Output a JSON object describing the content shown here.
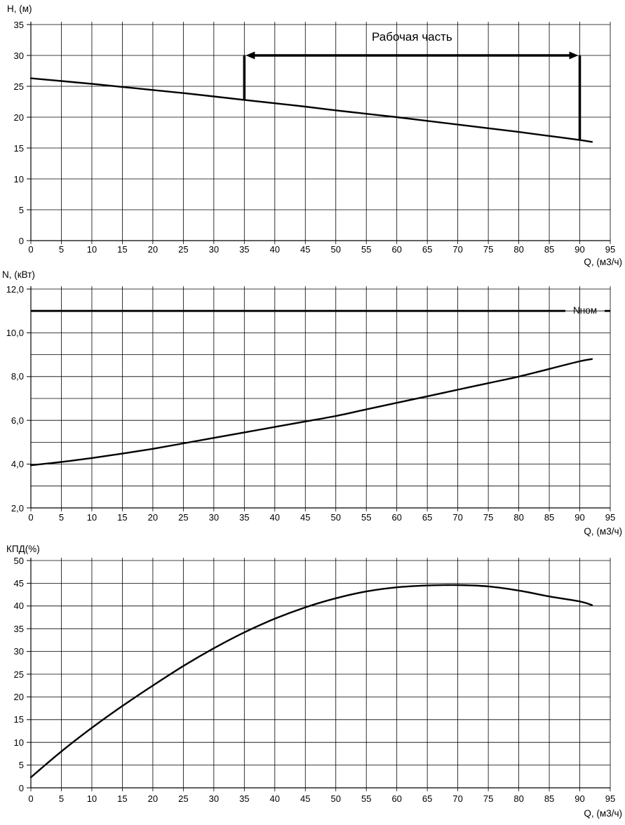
{
  "page": {
    "background": "#ffffff",
    "ink_color": "#000000"
  },
  "chart_data": [
    {
      "type": "line",
      "id": "head-chart",
      "ylabel": "H, (м)",
      "xlabel": "Q, (м3/ч)",
      "xlim": [
        0,
        95
      ],
      "ylim": [
        0,
        35
      ],
      "grid": true,
      "grid_y_step": 5,
      "x_ticks": [
        0,
        5,
        10,
        15,
        20,
        25,
        30,
        35,
        40,
        45,
        50,
        55,
        60,
        65,
        70,
        75,
        80,
        85,
        90,
        95
      ],
      "y_ticks": [
        35,
        30,
        25,
        20,
        15,
        10,
        5,
        0
      ],
      "y_tick_labels": [
        "35",
        "30",
        "25",
        "20",
        "15",
        "10",
        "5",
        "0"
      ],
      "series": [
        {
          "id": "head-curve",
          "x": [
            0,
            5,
            10,
            15,
            20,
            25,
            30,
            35,
            40,
            45,
            50,
            55,
            60,
            65,
            70,
            75,
            80,
            85,
            90,
            92
          ],
          "y": [
            26.3,
            25.85,
            25.4,
            24.9,
            24.4,
            23.9,
            23.35,
            22.8,
            22.25,
            21.7,
            21.1,
            20.55,
            20.0,
            19.4,
            18.8,
            18.2,
            17.6,
            16.95,
            16.3,
            16.0
          ]
        }
      ],
      "annotation": {
        "label": "Рабочая часть",
        "from_q": 35,
        "to_q": 90,
        "level": 30
      }
    },
    {
      "type": "line",
      "id": "power-chart",
      "ylabel": "N, (кВт)",
      "xlabel": "Q, (м3/ч)",
      "xlim": [
        0,
        95
      ],
      "ylim": [
        2,
        12
      ],
      "grid": true,
      "grid_y_step": 1,
      "x_ticks": [
        0,
        5,
        10,
        15,
        20,
        25,
        30,
        35,
        40,
        45,
        50,
        55,
        60,
        65,
        70,
        75,
        80,
        85,
        90,
        95
      ],
      "y_ticks": [
        12,
        10,
        8,
        6,
        4,
        2
      ],
      "y_tick_labels": [
        "12,0",
        "10,0",
        "8,0",
        "6,0",
        "4,0",
        "2,0"
      ],
      "series": [
        {
          "id": "power-curve",
          "x": [
            0,
            5,
            10,
            15,
            20,
            25,
            30,
            35,
            40,
            45,
            50,
            55,
            60,
            65,
            70,
            75,
            80,
            85,
            90,
            92
          ],
          "y": [
            3.95,
            4.1,
            4.28,
            4.48,
            4.7,
            4.95,
            5.2,
            5.45,
            5.7,
            5.95,
            6.2,
            6.5,
            6.8,
            7.1,
            7.4,
            7.7,
            8.0,
            8.35,
            8.7,
            8.8
          ]
        }
      ],
      "ref_line": {
        "value": 11.0,
        "label": "Nном"
      }
    },
    {
      "type": "line",
      "id": "efficiency-chart",
      "ylabel": "КПД(%)",
      "xlabel": "Q, (м3/ч)",
      "xlim": [
        0,
        95
      ],
      "ylim": [
        0,
        50
      ],
      "grid": true,
      "grid_y_step": 5,
      "x_ticks": [
        0,
        5,
        10,
        15,
        20,
        25,
        30,
        35,
        40,
        45,
        50,
        55,
        60,
        65,
        70,
        75,
        80,
        85,
        90,
        95
      ],
      "y_ticks": [
        50,
        45,
        40,
        35,
        30,
        25,
        20,
        15,
        10,
        5,
        0
      ],
      "y_tick_labels": [
        "50",
        "45",
        "40",
        "35",
        "30",
        "25",
        "20",
        "15",
        "10",
        "5",
        "0"
      ],
      "series": [
        {
          "id": "efficiency-curve",
          "x": [
            0,
            5,
            10,
            15,
            20,
            25,
            30,
            35,
            40,
            45,
            50,
            55,
            60,
            65,
            70,
            75,
            80,
            85,
            90,
            92
          ],
          "y": [
            2.3,
            8.0,
            13.2,
            18.0,
            22.5,
            26.8,
            30.7,
            34.2,
            37.2,
            39.7,
            41.7,
            43.2,
            44.1,
            44.5,
            44.6,
            44.3,
            43.4,
            42.1,
            41.0,
            40.2
          ]
        }
      ]
    }
  ]
}
